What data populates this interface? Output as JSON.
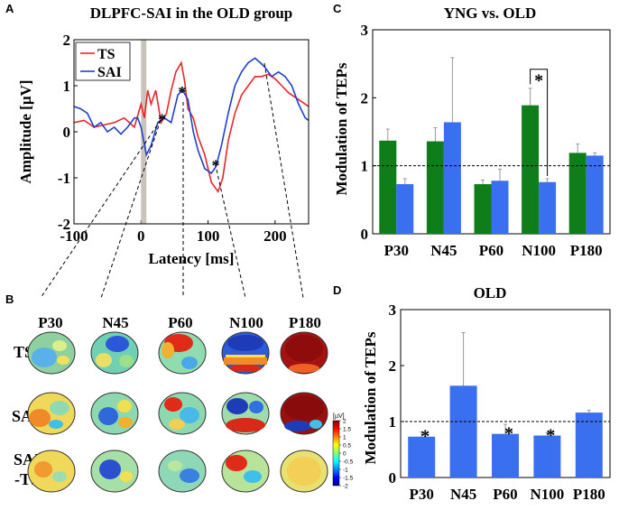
{
  "panels": {
    "A": {
      "letter": "A",
      "title": "DLPFC-SAI in the OLD group",
      "ylabel": "Amplitude [µV]",
      "xlabel": "Latency [ms]",
      "xticks": [
        "-100",
        "0",
        "100",
        "200"
      ],
      "yticks": [
        "-2",
        "-1",
        "0",
        "1",
        "2"
      ],
      "legend": [
        "TS",
        "SAI"
      ],
      "star": "*"
    },
    "B": {
      "letter": "B",
      "peaks": [
        "P30",
        "N45",
        "P60",
        "N100",
        "P180"
      ],
      "rows": [
        "TS",
        "SAI",
        "SAI\n-TS"
      ],
      "colorbar_unit": "[µV]",
      "colorbar_ticks": [
        "2",
        "1.5",
        "1",
        "0.5",
        "0",
        "-0.5",
        "-1",
        "-1.5",
        "-2"
      ]
    },
    "C": {
      "letter": "C",
      "title": "YNG vs. OLD",
      "ylabel": "Modulation of TEPs",
      "yticks": [
        "0",
        "1",
        "2",
        "3"
      ],
      "star": "*"
    },
    "D": {
      "letter": "D",
      "title": "OLD",
      "ylabel": "Modulation of TEPs",
      "yticks": [
        "0",
        "1",
        "2",
        "3"
      ],
      "star": "*"
    }
  },
  "chart_data": [
    {
      "type": "line",
      "panel": "A",
      "title": "DLPFC-SAI in the OLD group",
      "xlabel": "Latency [ms]",
      "ylabel": "Amplitude [µV]",
      "xlim": [
        -100,
        250
      ],
      "ylim": [
        -2,
        2
      ],
      "series": [
        {
          "name": "TS",
          "color": "#e8262b",
          "x": [
            -100,
            -85,
            -70,
            -55,
            -40,
            -25,
            -10,
            0,
            5,
            10,
            15,
            22,
            30,
            38,
            45,
            52,
            60,
            65,
            70,
            78,
            85,
            95,
            105,
            115,
            122,
            130,
            140,
            150,
            160,
            170,
            180,
            190,
            200,
            210,
            220,
            230,
            240,
            250
          ],
          "y": [
            0.2,
            0.25,
            0.1,
            0.15,
            0.2,
            0.3,
            0.1,
            0.6,
            0.3,
            0.9,
            0.6,
            0.9,
            0.2,
            0.4,
            0.9,
            1.3,
            1.5,
            1.1,
            0.5,
            0.3,
            -0.1,
            -0.5,
            -1.1,
            -1.3,
            -1.0,
            -0.2,
            0.4,
            0.8,
            1.0,
            1.2,
            1.2,
            1.25,
            1.15,
            1.0,
            0.85,
            0.75,
            0.65,
            0.55
          ]
        },
        {
          "name": "SAI",
          "color": "#2040c8",
          "x": [
            -100,
            -90,
            -80,
            -70,
            -60,
            -50,
            -40,
            -30,
            -20,
            -10,
            -5,
            0,
            8,
            15,
            25,
            35,
            45,
            55,
            62,
            70,
            78,
            85,
            95,
            105,
            112,
            120,
            130,
            140,
            150,
            160,
            170,
            178,
            185,
            195,
            205,
            215,
            225,
            235,
            245,
            250
          ],
          "y": [
            0.55,
            0.5,
            0.4,
            0.1,
            0.2,
            0.0,
            0.1,
            -0.05,
            0.1,
            0.3,
            0.3,
            0.1,
            -0.5,
            -0.3,
            0.2,
            0.3,
            0.2,
            0.8,
            0.9,
            0.7,
            0.0,
            -0.4,
            -0.8,
            -0.9,
            -0.75,
            -0.3,
            0.4,
            1.0,
            1.3,
            1.5,
            1.6,
            1.5,
            1.4,
            1.2,
            1.3,
            1.2,
            1.0,
            0.6,
            0.3,
            0.25
          ]
        }
      ],
      "peak_markers": [
        {
          "label": "P30",
          "x": 30,
          "y": 0.3
        },
        {
          "label": "P60",
          "x": 60,
          "y": 0.9
        },
        {
          "label": "N100",
          "x": 110,
          "y": -0.7
        }
      ],
      "stim_bar": {
        "x": [
          0,
          8
        ]
      }
    },
    {
      "type": "bar",
      "panel": "C",
      "title": "YNG vs. OLD",
      "ylabel": "Modulation of TEPs",
      "categories": [
        "P30",
        "N45",
        "P60",
        "N100",
        "P180"
      ],
      "ylim": [
        0,
        3
      ],
      "reference_line": 1,
      "series": [
        {
          "name": "YNG",
          "color": "#0f7e1a",
          "values": [
            1.37,
            1.36,
            0.73,
            1.89,
            1.19
          ],
          "errors": [
            0.17,
            0.2,
            0.06,
            0.25,
            0.13
          ]
        },
        {
          "name": "OLD",
          "color": "#3a70f0",
          "values": [
            0.73,
            1.64,
            0.78,
            0.76,
            1.15
          ],
          "errors": [
            0.08,
            0.95,
            0.17,
            0.05,
            0.04
          ]
        }
      ],
      "significance": [
        {
          "category": "N100",
          "label": "*"
        }
      ]
    },
    {
      "type": "bar",
      "panel": "D",
      "title": "OLD",
      "ylabel": "Modulation of TEPs",
      "categories": [
        "P30",
        "N45",
        "P60",
        "N100",
        "P180"
      ],
      "ylim": [
        0,
        3
      ],
      "reference_line": 1,
      "series": [
        {
          "name": "OLD",
          "color": "#3a70f0",
          "values": [
            0.73,
            1.64,
            0.78,
            0.75,
            1.16
          ],
          "errors": [
            0.08,
            0.95,
            0.17,
            0.05,
            0.04
          ]
        }
      ],
      "significance_categories": [
        "P30",
        "P60",
        "N100"
      ]
    }
  ],
  "colors": {
    "ts": "#e8262b",
    "sai": "#2040c8",
    "yng_bar": "#0f7e1a",
    "old_bar": "#3a70f0",
    "stim": "#c9c3bb"
  }
}
